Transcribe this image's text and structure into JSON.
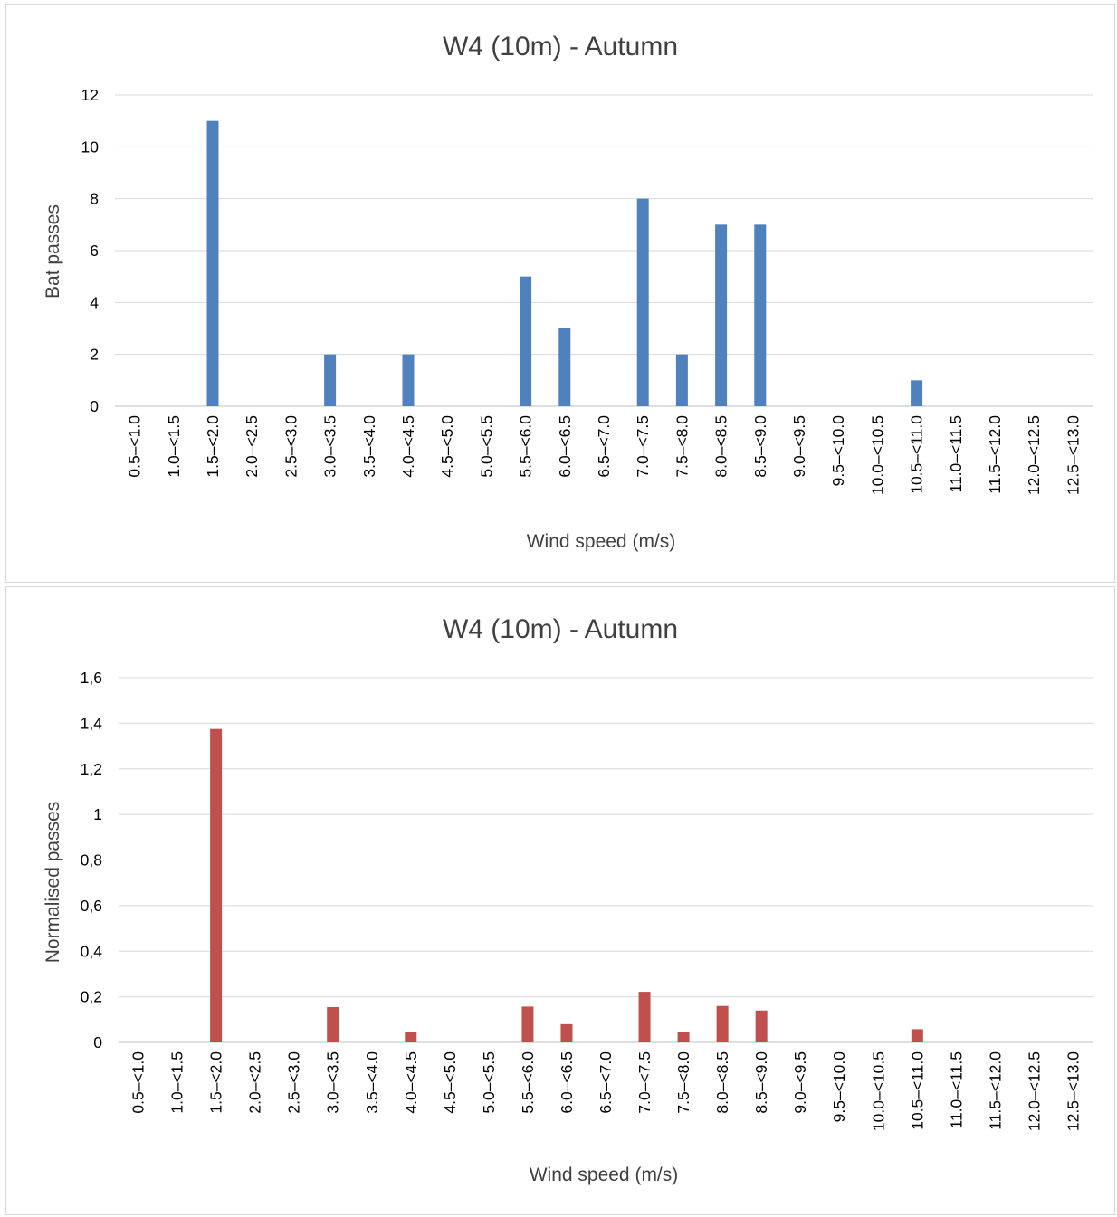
{
  "chart_data": [
    {
      "type": "bar",
      "title": "W4 (10m) - Autumn",
      "xlabel": "Wind speed (m/s)",
      "ylabel": "Bat passes",
      "categories": [
        "0.5‒<1.0",
        "1.0‒<1.5",
        "1.5‒<2.0",
        "2.0‒<2.5",
        "2.5‒<3.0",
        "3.0‒<3.5",
        "3.5‒<4.0",
        "4.0‒<4.5",
        "4.5‒<5.0",
        "5.0‒<5.5",
        "5.5‒<6.0",
        "6.0‒<6.5",
        "6.5‒<7.0",
        "7.0‒<7.5",
        "7.5‒<8.0",
        "8.0‒<8.5",
        "8.5‒<9.0",
        "9.0‒<9.5",
        "9.5‒<10.0",
        "10.0‒<10.5",
        "10.5‒<11.0",
        "11.0‒<11.5",
        "11.5‒<12.0",
        "12.0‒<12.5",
        "12.5‒<13.0"
      ],
      "values": [
        0,
        0,
        11,
        0,
        0,
        2,
        0,
        2,
        0,
        0,
        5,
        3,
        0,
        8,
        2,
        7,
        7,
        0,
        0,
        0,
        1,
        0,
        0,
        0,
        0
      ],
      "ylim": [
        0,
        12
      ],
      "yticks": [
        "0",
        "2",
        "4",
        "6",
        "8",
        "10",
        "12"
      ],
      "grid": true,
      "legend": "none",
      "color": "#4f81bd"
    },
    {
      "type": "bar",
      "title": "W4 (10m) - Autumn",
      "xlabel": "Wind speed (m/s)",
      "ylabel": "Normalised passes",
      "categories": [
        "0.5‒<1.0",
        "1.0‒<1.5",
        "1.5‒<2.0",
        "2.0‒<2.5",
        "2.5‒<3.0",
        "3.0‒<3.5",
        "3.5‒<4.0",
        "4.0‒<4.5",
        "4.5‒<5.0",
        "5.0‒<5.5",
        "5.5‒<6.0",
        "6.0‒<6.5",
        "6.5‒<7.0",
        "7.0‒<7.5",
        "7.5‒<8.0",
        "8.0‒<8.5",
        "8.5‒<9.0",
        "9.0‒<9.5",
        "9.5‒<10.0",
        "10.0‒<10.5",
        "10.5‒<11.0",
        "11.0‒<11.5",
        "11.5‒<12.0",
        "12.0‒<12.5",
        "12.5‒<13.0"
      ],
      "values": [
        0,
        0,
        1.375,
        0,
        0,
        0.155,
        0,
        0.045,
        0,
        0,
        0.157,
        0.08,
        0,
        0.222,
        0.045,
        0.16,
        0.14,
        0,
        0,
        0,
        0.058,
        0,
        0,
        0,
        0
      ],
      "ylim": [
        0,
        1.6
      ],
      "yticks": [
        "0",
        "0,2",
        "0,4",
        "0,6",
        "0,8",
        "1",
        "1,2",
        "1,4",
        "1,6"
      ],
      "grid": true,
      "legend": "none",
      "color": "#c0504d"
    }
  ]
}
